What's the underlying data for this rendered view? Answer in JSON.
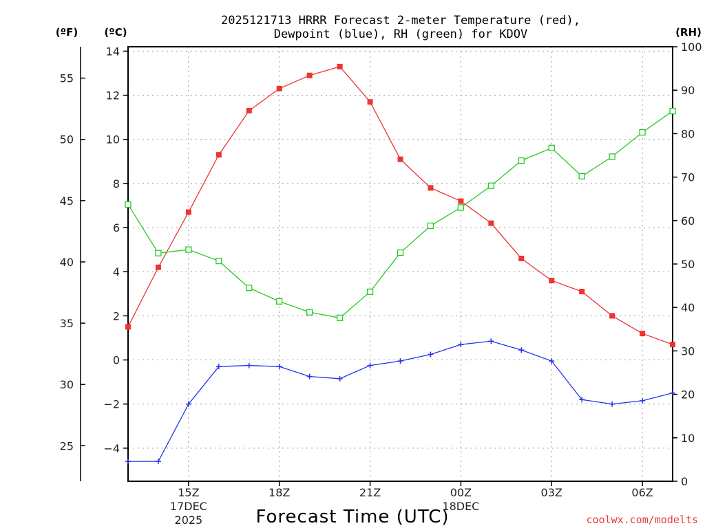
{
  "title": {
    "line1": "2025121713 HRRR Forecast 2-meter Temperature (red),",
    "line2": "Dewpoint (blue), RH (green) for KDOV"
  },
  "units": {
    "fahrenheit": "(ºF)",
    "celsius": "(ºC)",
    "rh": "(RH)"
  },
  "credit": "coolwx.com/modelts",
  "colors": {
    "temperature": "#ee3333",
    "dewpoint": "#2233ee",
    "rh": "#22cc22"
  },
  "chart_data": {
    "type": "line",
    "x": [
      13,
      14,
      15,
      16,
      17,
      18,
      19,
      20,
      21,
      22,
      23,
      24,
      25,
      26,
      27,
      28,
      29,
      30,
      31
    ],
    "x_unit": "hours since 2025-12-17 00Z",
    "xlim": [
      13,
      31
    ],
    "xlabel": "Forecast Time (UTC)",
    "x_ticks": [
      {
        "x": 15,
        "label": "15Z",
        "sub": [
          "17DEC",
          "2025"
        ]
      },
      {
        "x": 18,
        "label": "18Z",
        "sub": []
      },
      {
        "x": 21,
        "label": "21Z",
        "sub": []
      },
      {
        "x": 24,
        "label": "00Z",
        "sub": [
          "18DEC"
        ]
      },
      {
        "x": 27,
        "label": "03Z",
        "sub": []
      },
      {
        "x": 30,
        "label": "06Z",
        "sub": []
      }
    ],
    "celsius_axis": {
      "ylim": [
        -5.5,
        14.2
      ],
      "ticks": [
        -4,
        -2,
        0,
        2,
        4,
        6,
        8,
        10,
        12,
        14
      ]
    },
    "fahrenheit_axis": {
      "ticks": [
        25,
        30,
        35,
        40,
        45,
        50,
        55
      ]
    },
    "rh_axis": {
      "ylim": [
        0,
        100
      ],
      "ticks": [
        0,
        10,
        20,
        30,
        40,
        50,
        60,
        70,
        80,
        90,
        100
      ]
    },
    "series": [
      {
        "name": "Temperature",
        "axis": "celsius",
        "marker": "filled-square",
        "values": [
          1.5,
          4.2,
          6.7,
          9.3,
          11.3,
          12.3,
          12.9,
          13.3,
          11.7,
          9.1,
          7.8,
          7.2,
          6.2,
          4.6,
          3.6,
          3.1,
          2.0,
          1.2,
          0.7
        ]
      },
      {
        "name": "Dewpoint",
        "axis": "celsius",
        "marker": "plus",
        "values": [
          -4.6,
          -4.6,
          -2.0,
          -0.3,
          -0.25,
          -0.3,
          -0.75,
          -0.85,
          -0.25,
          -0.05,
          0.25,
          0.7,
          0.85,
          0.45,
          -0.05,
          -1.8,
          -2.0,
          -1.85,
          -1.5
        ]
      },
      {
        "name": "RH",
        "axis": "rh",
        "marker": "open-square",
        "values": [
          63.7,
          52.5,
          53.3,
          50.7,
          44.5,
          41.4,
          38.9,
          37.6,
          43.6,
          52.6,
          58.8,
          63.0,
          68.0,
          73.8,
          76.7,
          70.2,
          74.7,
          80.3,
          85.2
        ]
      }
    ]
  }
}
